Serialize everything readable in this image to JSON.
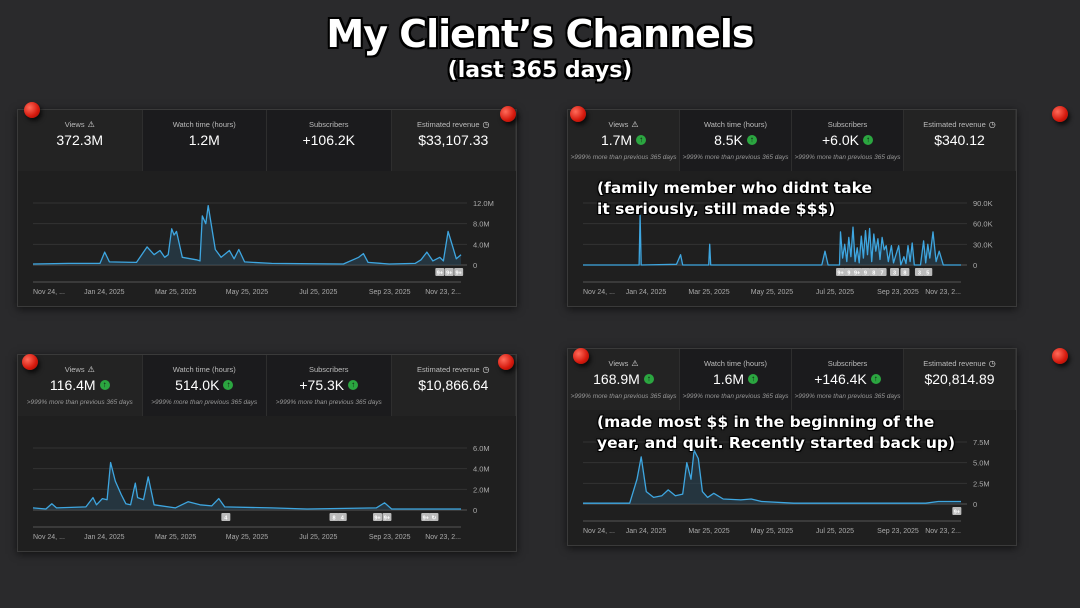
{
  "header": {
    "title": "My Client’s Channels",
    "subtitle": "(last 365 days)"
  },
  "colors": {
    "line": "#3ea6e0",
    "fill": "#2a4555",
    "up_badge": "#2ba640",
    "pin": "#d4180c",
    "background": "#2a2a2c"
  },
  "panels": [
    {
      "stats": [
        {
          "label": "Views",
          "icon": "warning-icon",
          "value": "372.3M",
          "up": false,
          "sub": ""
        },
        {
          "label": "Watch time (hours)",
          "value": "1.2M",
          "up": false,
          "sub": ""
        },
        {
          "label": "Subscribers",
          "value": "+106.2K",
          "up": false,
          "sub": ""
        },
        {
          "label": "Estimated revenue",
          "icon": "clock-icon",
          "value": "$33,107.33",
          "up": false,
          "sub": ""
        }
      ],
      "note": "",
      "markers": [
        {
          "date": "2025-11-05",
          "label": "9+"
        },
        {
          "date": "2025-11-13",
          "label": "9+"
        },
        {
          "date": "2025-11-21",
          "label": "9+"
        }
      ],
      "chart_data": {
        "type": "area",
        "y_ticks": [
          "0",
          "4.0M",
          "8.0M",
          "12.0M"
        ],
        "ylim": [
          0,
          12
        ],
        "x_ticks": [
          "Nov 24, ...",
          "Jan 24, 2025",
          "Mar 25, 2025",
          "May 25, 2025",
          "Jul 25, 2025",
          "Sep 23, 2025",
          "Nov 23, 2..."
        ],
        "xlim": [
          "2024-11-24",
          "2025-11-23"
        ],
        "grid": true,
        "points": [
          [
            "2024-11-24",
            0.2
          ],
          [
            "2024-12-24",
            0.3
          ],
          [
            "2025-01-20",
            0.3
          ],
          [
            "2025-01-24",
            2.5
          ],
          [
            "2025-01-28",
            0.6
          ],
          [
            "2025-02-20",
            0.5
          ],
          [
            "2025-03-01",
            3.5
          ],
          [
            "2025-03-07",
            2.0
          ],
          [
            "2025-03-12",
            2.8
          ],
          [
            "2025-03-16",
            1.5
          ],
          [
            "2025-03-19",
            2.0
          ],
          [
            "2025-03-22",
            7.0
          ],
          [
            "2025-03-24",
            5.8
          ],
          [
            "2025-03-26",
            6.5
          ],
          [
            "2025-03-31",
            1.5
          ],
          [
            "2025-04-12",
            1.0
          ],
          [
            "2025-04-15",
            0.8
          ],
          [
            "2025-04-17",
            9.5
          ],
          [
            "2025-04-20",
            8.0
          ],
          [
            "2025-04-22",
            11.5
          ],
          [
            "2025-04-28",
            3.0
          ],
          [
            "2025-05-03",
            1.5
          ],
          [
            "2025-05-10",
            2.8
          ],
          [
            "2025-05-14",
            1.2
          ],
          [
            "2025-05-18",
            3.0
          ],
          [
            "2025-05-23",
            0.6
          ],
          [
            "2025-06-15",
            0.3
          ],
          [
            "2025-08-15",
            0.2
          ],
          [
            "2025-08-28",
            1.5
          ],
          [
            "2025-09-01",
            2.2
          ],
          [
            "2025-09-05",
            0.5
          ],
          [
            "2025-09-23",
            0.2
          ],
          [
            "2025-10-15",
            0.3
          ],
          [
            "2025-10-20",
            1.0
          ],
          [
            "2025-10-25",
            2.5
          ],
          [
            "2025-10-30",
            0.8
          ],
          [
            "2025-11-05",
            1.5
          ],
          [
            "2025-11-08",
            0.8
          ],
          [
            "2025-11-12",
            6.5
          ],
          [
            "2025-11-16",
            3.5
          ],
          [
            "2025-11-19",
            1.2
          ],
          [
            "2025-11-23",
            2.0
          ]
        ]
      }
    },
    {
      "stats": [
        {
          "label": "Views",
          "icon": "warning-icon",
          "value": "1.7M",
          "up": true,
          "sub": ">999% more than previous 365 days"
        },
        {
          "label": "Watch time (hours)",
          "value": "8.5K",
          "up": true,
          "sub": ">999% more than previous 365 days"
        },
        {
          "label": "Subscribers",
          "value": "+6.0K",
          "up": true,
          "sub": ">999% more than previous 365 days"
        },
        {
          "label": "Estimated revenue",
          "icon": "clock-icon",
          "value": "$340.12",
          "up": false,
          "sub": ""
        }
      ],
      "note": "(family member who didnt take it seriously, still made $$$)",
      "markers": [
        {
          "date": "2025-07-30",
          "label": "9+"
        },
        {
          "date": "2025-08-07",
          "label": "9"
        },
        {
          "date": "2025-08-15",
          "label": "9+"
        },
        {
          "date": "2025-08-23",
          "label": "9"
        },
        {
          "date": "2025-08-31",
          "label": "8"
        },
        {
          "date": "2025-09-08",
          "label": "7"
        },
        {
          "date": "2025-09-20",
          "label": "3"
        },
        {
          "date": "2025-09-30",
          "label": "8"
        },
        {
          "date": "2025-10-14",
          "label": "3"
        },
        {
          "date": "2025-10-22",
          "label": "5"
        }
      ],
      "chart_data": {
        "type": "area",
        "y_ticks": [
          "0",
          "30.0K",
          "60.0K",
          "90.0K"
        ],
        "ylim": [
          0,
          90
        ],
        "x_ticks": [
          "Nov 24, ...",
          "Jan 24, 2025",
          "Mar 25, 2025",
          "May 25, 2025",
          "Jul 25, 2025",
          "Sep 23, 2025",
          "Nov 23, 2..."
        ],
        "xlim": [
          "2024-11-24",
          "2025-11-23"
        ],
        "grid": true,
        "points": [
          [
            "2024-11-24",
            0
          ],
          [
            "2025-01-17",
            0
          ],
          [
            "2025-01-18",
            72
          ],
          [
            "2025-01-19",
            0
          ],
          [
            "2025-02-22",
            1
          ],
          [
            "2025-02-26",
            15
          ],
          [
            "2025-02-28",
            0
          ],
          [
            "2025-03-25",
            0
          ],
          [
            "2025-03-26",
            30
          ],
          [
            "2025-03-27",
            0
          ],
          [
            "2025-07-12",
            0
          ],
          [
            "2025-07-15",
            20
          ],
          [
            "2025-07-18",
            0
          ],
          [
            "2025-07-29",
            0
          ],
          [
            "2025-07-30",
            48
          ],
          [
            "2025-08-01",
            10
          ],
          [
            "2025-08-03",
            30
          ],
          [
            "2025-08-05",
            5
          ],
          [
            "2025-08-07",
            40
          ],
          [
            "2025-08-09",
            12
          ],
          [
            "2025-08-11",
            55
          ],
          [
            "2025-08-13",
            5
          ],
          [
            "2025-08-15",
            25
          ],
          [
            "2025-08-17",
            3
          ],
          [
            "2025-08-19",
            42
          ],
          [
            "2025-08-21",
            10
          ],
          [
            "2025-08-23",
            50
          ],
          [
            "2025-08-25",
            15
          ],
          [
            "2025-08-27",
            53
          ],
          [
            "2025-08-29",
            5
          ],
          [
            "2025-08-31",
            45
          ],
          [
            "2025-09-02",
            20
          ],
          [
            "2025-09-04",
            38
          ],
          [
            "2025-09-06",
            8
          ],
          [
            "2025-09-08",
            40
          ],
          [
            "2025-09-10",
            22
          ],
          [
            "2025-09-12",
            28
          ],
          [
            "2025-09-14",
            5
          ],
          [
            "2025-09-17",
            28
          ],
          [
            "2025-09-19",
            3
          ],
          [
            "2025-09-24",
            28
          ],
          [
            "2025-09-26",
            0
          ],
          [
            "2025-09-29",
            12
          ],
          [
            "2025-10-01",
            2
          ],
          [
            "2025-10-03",
            28
          ],
          [
            "2025-10-05",
            5
          ],
          [
            "2025-10-07",
            32
          ],
          [
            "2025-10-09",
            0
          ],
          [
            "2025-10-15",
            0
          ],
          [
            "2025-10-18",
            35
          ],
          [
            "2025-10-20",
            3
          ],
          [
            "2025-10-22",
            30
          ],
          [
            "2025-10-24",
            10
          ],
          [
            "2025-10-27",
            48
          ],
          [
            "2025-10-30",
            5
          ],
          [
            "2025-11-02",
            20
          ],
          [
            "2025-11-06",
            0
          ],
          [
            "2025-11-23",
            0
          ]
        ]
      }
    },
    {
      "stats": [
        {
          "label": "Views",
          "icon": "warning-icon",
          "value": "116.4M",
          "up": true,
          "sub": ">999% more than previous 365 days"
        },
        {
          "label": "Watch time (hours)",
          "value": "514.0K",
          "up": true,
          "sub": ">999% more than previous 365 days"
        },
        {
          "label": "Subscribers",
          "value": "+75.3K",
          "up": true,
          "sub": ">999% more than previous 365 days"
        },
        {
          "label": "Estimated revenue",
          "icon": "clock-icon",
          "value": "$10,866.64",
          "up": false,
          "sub": ""
        }
      ],
      "note": "",
      "markers": [
        {
          "date": "2025-05-07",
          "label": "4"
        },
        {
          "date": "2025-08-07",
          "label": "8"
        },
        {
          "date": "2025-08-14",
          "label": "4"
        },
        {
          "date": "2025-09-13",
          "label": "9+"
        },
        {
          "date": "2025-09-21",
          "label": "9+"
        },
        {
          "date": "2025-10-24",
          "label": "9+"
        },
        {
          "date": "2025-10-31",
          "label": "↻"
        }
      ],
      "chart_data": {
        "type": "area",
        "y_ticks": [
          "0",
          "2.0M",
          "4.0M",
          "6.0M"
        ],
        "ylim": [
          0,
          6
        ],
        "x_ticks": [
          "Nov 24, ...",
          "Jan 24, 2025",
          "Mar 25, 2025",
          "May 25, 2025",
          "Jul 25, 2025",
          "Sep 23, 2025",
          "Nov 23, 2..."
        ],
        "xlim": [
          "2024-11-24",
          "2025-11-23"
        ],
        "grid": true,
        "points": [
          [
            "2024-11-24",
            0.2
          ],
          [
            "2024-12-05",
            0.1
          ],
          [
            "2024-12-10",
            0.6
          ],
          [
            "2024-12-14",
            0.2
          ],
          [
            "2025-01-08",
            0.3
          ],
          [
            "2025-01-14",
            1.2
          ],
          [
            "2025-01-17",
            0.5
          ],
          [
            "2025-01-22",
            1.1
          ],
          [
            "2025-01-26",
            1.0
          ],
          [
            "2025-01-29",
            4.6
          ],
          [
            "2025-02-02",
            2.8
          ],
          [
            "2025-02-07",
            1.5
          ],
          [
            "2025-02-11",
            0.6
          ],
          [
            "2025-02-15",
            0.5
          ],
          [
            "2025-02-19",
            2.6
          ],
          [
            "2025-02-21",
            1.2
          ],
          [
            "2025-02-26",
            1.0
          ],
          [
            "2025-03-02",
            3.2
          ],
          [
            "2025-03-07",
            0.5
          ],
          [
            "2025-03-25",
            0.2
          ],
          [
            "2025-04-05",
            0.8
          ],
          [
            "2025-04-15",
            0.5
          ],
          [
            "2025-04-25",
            0.4
          ],
          [
            "2025-05-01",
            1.1
          ],
          [
            "2025-05-06",
            0.3
          ],
          [
            "2025-06-15",
            0.2
          ],
          [
            "2025-07-15",
            0.1
          ],
          [
            "2025-09-12",
            0.2
          ],
          [
            "2025-09-19",
            0.7
          ],
          [
            "2025-09-25",
            0.1
          ],
          [
            "2025-11-23",
            0.1
          ]
        ]
      }
    },
    {
      "stats": [
        {
          "label": "Views",
          "icon": "warning-icon",
          "value": "168.9M",
          "up": true,
          "sub": ">999% more than previous 365 days"
        },
        {
          "label": "Watch time (hours)",
          "value": "1.6M",
          "up": true,
          "sub": ">999% more than previous 365 days"
        },
        {
          "label": "Subscribers",
          "value": "+146.4K",
          "up": true,
          "sub": ">999% more than previous 365 days"
        },
        {
          "label": "Estimated revenue",
          "icon": "clock-icon",
          "value": "$20,814.89",
          "up": false,
          "sub": ""
        }
      ],
      "note": "(made most $$ in the beginning of the year, and quit. Recently started back up)",
      "markers": [
        {
          "date": "2025-11-19",
          "label": "9+"
        }
      ],
      "chart_data": {
        "type": "area",
        "y_ticks": [
          "0",
          "2.5M",
          "5.0M",
          "7.5M"
        ],
        "ylim": [
          0,
          7.5
        ],
        "x_ticks": [
          "Nov 24, ...",
          "Jan 24, 2025",
          "Mar 25, 2025",
          "May 25, 2025",
          "Jul 25, 2025",
          "Sep 23, 2025",
          "Nov 23, 2..."
        ],
        "xlim": [
          "2024-11-24",
          "2025-11-23"
        ],
        "grid": true,
        "points": [
          [
            "2024-11-24",
            0.1
          ],
          [
            "2025-01-08",
            0.1
          ],
          [
            "2025-01-15",
            3.0
          ],
          [
            "2025-01-19",
            5.7
          ],
          [
            "2025-01-24",
            1.5
          ],
          [
            "2025-01-31",
            0.8
          ],
          [
            "2025-02-08",
            1.0
          ],
          [
            "2025-02-14",
            1.7
          ],
          [
            "2025-02-21",
            1.0
          ],
          [
            "2025-02-28",
            1.2
          ],
          [
            "2025-03-04",
            5.0
          ],
          [
            "2025-03-08",
            3.0
          ],
          [
            "2025-03-11",
            6.5
          ],
          [
            "2025-03-15",
            5.5
          ],
          [
            "2025-03-19",
            1.5
          ],
          [
            "2025-03-24",
            0.8
          ],
          [
            "2025-03-30",
            1.3
          ],
          [
            "2025-04-08",
            0.6
          ],
          [
            "2025-04-25",
            0.5
          ],
          [
            "2025-05-05",
            0.6
          ],
          [
            "2025-05-15",
            0.3
          ],
          [
            "2025-06-15",
            0.1
          ],
          [
            "2025-10-20",
            0.1
          ],
          [
            "2025-11-01",
            0.3
          ],
          [
            "2025-11-23",
            0.3
          ]
        ]
      }
    }
  ]
}
